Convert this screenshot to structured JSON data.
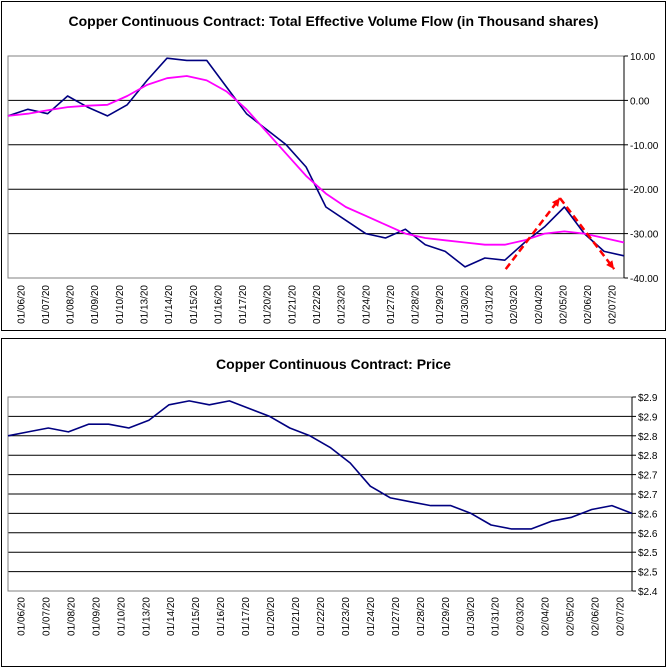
{
  "chart_data": [
    {
      "type": "line",
      "title": "Copper Continuous Contract: Total Effective Volume Flow (in Thousand shares)",
      "xlabel": "",
      "ylabel": "",
      "ylim": [
        -40,
        10
      ],
      "yticks": [
        10,
        0,
        -10,
        -20,
        -30,
        -40
      ],
      "ytick_labels": [
        "10.00",
        "0.00",
        "-10.00",
        "-20.00",
        "-30.00",
        "-40.00"
      ],
      "x_tick_labels": [
        "01/06/20",
        "01/07/20",
        "01/08/20",
        "01/09/20",
        "01/10/20",
        "01/13/20",
        "01/14/20",
        "01/15/20",
        "01/16/20",
        "01/17/20",
        "01/20/20",
        "01/21/20",
        "01/22/20",
        "01/23/20",
        "01/24/20",
        "01/27/20",
        "01/28/20",
        "01/29/20",
        "01/30/20",
        "01/31/20",
        "02/03/20",
        "02/04/20",
        "02/05/20",
        "02/06/20",
        "02/07/20"
      ],
      "grid": "horizontal",
      "legend": "none",
      "series": [
        {
          "color": "#000080",
          "values": [
            -3.5,
            -2.0,
            -3.0,
            1.0,
            -1.5,
            -3.5,
            -1.0,
            4.5,
            9.5,
            9.0,
            9.0,
            3.0,
            -3.0,
            -6.5,
            -10.0,
            -15.0,
            -24.0,
            -27.0,
            -30.0,
            -31.0,
            -29.0,
            -32.5,
            -34.0,
            -37.5,
            -35.5,
            -36.0,
            -32.0,
            -28.5,
            -24.0,
            -30.0,
            -34.0,
            -35.0
          ]
        },
        {
          "color": "#FF00FF",
          "values": [
            -3.5,
            -3.0,
            -2.2,
            -1.5,
            -1.2,
            -1.0,
            1.0,
            3.5,
            5.0,
            5.5,
            4.5,
            2.0,
            -2.0,
            -7.0,
            -12.0,
            -17.0,
            -21.0,
            -24.0,
            -26.0,
            -28.0,
            -30.0,
            -31.0,
            -31.5,
            -32.0,
            -32.5,
            -32.5,
            -31.5,
            -30.0,
            -29.5,
            -30.0,
            -31.0,
            -32.0
          ]
        }
      ],
      "annotations": [
        {
          "type": "trend-arrow",
          "style": "dashed",
          "color": "#FF0000",
          "points": [
            [
              20.2,
              -38.0
            ],
            [
              22.4,
              -22.0
            ],
            [
              24.6,
              -38.0
            ]
          ]
        }
      ]
    },
    {
      "type": "line",
      "title": "Copper Continuous Contract: Price",
      "xlabel": "",
      "ylabel": "",
      "ylim": [
        2.4,
        2.9
      ],
      "yticks": [
        2.9,
        2.85,
        2.8,
        2.75,
        2.7,
        2.65,
        2.6,
        2.55,
        2.5,
        2.45,
        2.4
      ],
      "ytick_labels": [
        "$2.9",
        "$2.9",
        "$2.8",
        "$2.8",
        "$2.7",
        "$2.7",
        "$2.6",
        "$2.6",
        "$2.5",
        "$2.5",
        "$2.4"
      ],
      "x_tick_labels": [
        "01/06/20",
        "01/07/20",
        "01/08/20",
        "01/09/20",
        "01/10/20",
        "01/13/20",
        "01/14/20",
        "01/15/20",
        "01/16/20",
        "01/17/20",
        "01/20/20",
        "01/21/20",
        "01/22/20",
        "01/23/20",
        "01/24/20",
        "01/27/20",
        "01/28/20",
        "01/29/20",
        "01/30/20",
        "01/31/20",
        "02/03/20",
        "02/04/20",
        "02/05/20",
        "02/06/20",
        "02/07/20"
      ],
      "grid": "horizontal",
      "legend": "none",
      "series": [
        {
          "color": "#000080",
          "values": [
            2.8,
            2.81,
            2.82,
            2.81,
            2.83,
            2.83,
            2.82,
            2.84,
            2.88,
            2.89,
            2.88,
            2.89,
            2.87,
            2.85,
            2.82,
            2.8,
            2.77,
            2.73,
            2.67,
            2.64,
            2.63,
            2.62,
            2.62,
            2.6,
            2.57,
            2.56,
            2.56,
            2.58,
            2.59,
            2.61,
            2.62,
            2.6
          ]
        }
      ]
    }
  ]
}
